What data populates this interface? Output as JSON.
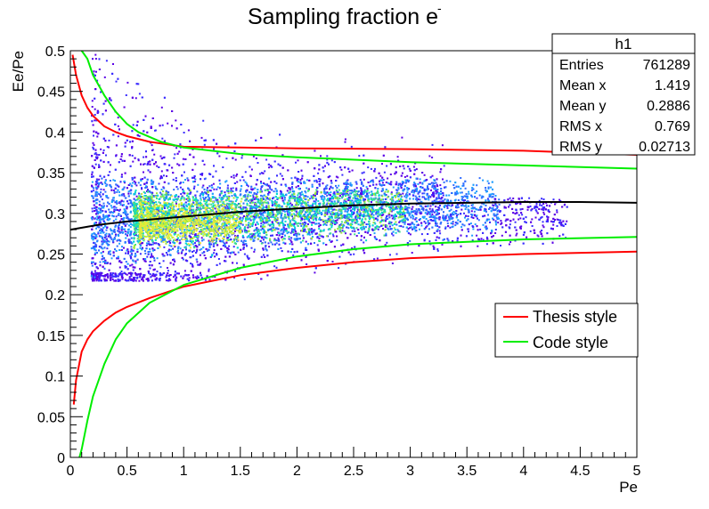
{
  "chart_data": {
    "type": "heatmap",
    "title": "Sampling fraction e",
    "title_superscript": "-",
    "xlabel": "Pe",
    "ylabel": "Ee/Pe",
    "xlim": [
      0,
      5
    ],
    "ylim": [
      0,
      0.5
    ],
    "x_ticks": [
      "0",
      "0.5",
      "1",
      "1.5",
      "2",
      "2.5",
      "3",
      "3.5",
      "4",
      "4.5",
      "5"
    ],
    "y_ticks": [
      "0",
      "0.05",
      "0.1",
      "0.15",
      "0.2",
      "0.25",
      "0.3",
      "0.35",
      "0.4",
      "0.45",
      "0.5"
    ],
    "grid": false,
    "stats_box": {
      "name": "h1",
      "rows": [
        {
          "label": "Entries",
          "value": "761289"
        },
        {
          "label": "Mean x",
          "value": "1.419"
        },
        {
          "label": "Mean y",
          "value": "0.2886"
        },
        {
          "label": "RMS x",
          "value": "0.769"
        },
        {
          "label": "RMS y",
          "value": "0.02713"
        }
      ]
    },
    "legend": {
      "placement": "right-middle",
      "entries": [
        {
          "label": "Thesis style",
          "color": "#ff0000"
        },
        {
          "label": "Code style",
          "color": "#00ee00"
        }
      ]
    },
    "series": [
      {
        "color": "#ff0000",
        "x": [
          0.02,
          0.05,
          0.1,
          0.15,
          0.2,
          0.3,
          0.4,
          0.5,
          0.7,
          1.0,
          1.5,
          2.0,
          3.0,
          4.0,
          5.0
        ],
        "values": [
          0.495,
          0.47,
          0.445,
          0.43,
          0.42,
          0.407,
          0.4,
          0.395,
          0.388,
          0.382,
          0.381,
          0.38,
          0.379,
          0.377,
          0.372
        ]
      },
      {
        "color": "#ff0000",
        "x": [
          0.03,
          0.05,
          0.1,
          0.15,
          0.2,
          0.3,
          0.4,
          0.5,
          0.7,
          1.0,
          1.5,
          2.0,
          2.5,
          3.0,
          4.0,
          5.0
        ],
        "values": [
          0.065,
          0.095,
          0.13,
          0.145,
          0.155,
          0.168,
          0.178,
          0.185,
          0.196,
          0.21,
          0.224,
          0.233,
          0.24,
          0.245,
          0.25,
          0.253
        ]
      },
      {
        "color": "#00ee00",
        "x": [
          0.1,
          0.15,
          0.2,
          0.3,
          0.4,
          0.5,
          0.6,
          0.8,
          1.0,
          1.5,
          2.0,
          3.0,
          4.0,
          5.0
        ],
        "values": [
          0.5,
          0.49,
          0.47,
          0.445,
          0.425,
          0.41,
          0.4,
          0.388,
          0.381,
          0.373,
          0.369,
          0.363,
          0.359,
          0.355
        ]
      },
      {
        "color": "#00ee00",
        "x": [
          0.08,
          0.1,
          0.15,
          0.2,
          0.3,
          0.4,
          0.5,
          0.7,
          1.0,
          1.5,
          2.0,
          2.5,
          3.0,
          4.0,
          5.0
        ],
        "values": [
          0.0,
          0.01,
          0.045,
          0.075,
          0.115,
          0.145,
          0.165,
          0.19,
          0.212,
          0.233,
          0.247,
          0.256,
          0.262,
          0.268,
          0.271
        ]
      },
      {
        "color": "#000000",
        "x": [
          0.0,
          0.25,
          0.5,
          1.0,
          1.5,
          2.0,
          2.5,
          3.0,
          3.5,
          4.0,
          4.5,
          5.0
        ],
        "values": [
          0.28,
          0.286,
          0.29,
          0.296,
          0.302,
          0.306,
          0.31,
          0.312,
          0.313,
          0.314,
          0.314,
          0.313
        ]
      }
    ]
  }
}
